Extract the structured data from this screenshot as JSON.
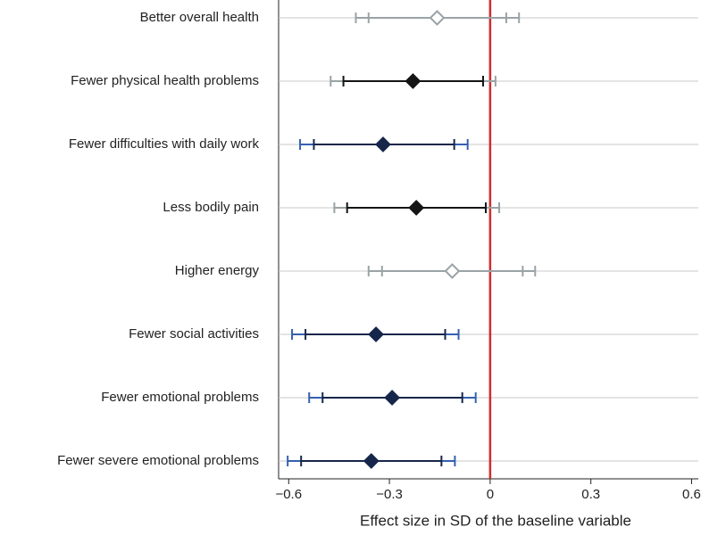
{
  "chart_data": {
    "type": "coefplot",
    "xlabel": "Effect size in SD of the baseline variable",
    "categories": [
      "Better overall health",
      "Fewer physical health problems",
      "Fewer difficulties with daily work",
      "Less bodily pain",
      "Higher energy",
      "Fewer social activities",
      "Fewer emotional problems",
      "Fewer severe emotional problems"
    ],
    "estimates": [
      -0.158,
      -0.23,
      -0.319,
      -0.22,
      -0.113,
      -0.34,
      -0.292,
      -0.354
    ],
    "ci90_low": [
      -0.362,
      -0.437,
      -0.525,
      -0.426,
      -0.322,
      -0.55,
      -0.499,
      -0.563
    ],
    "ci90_high": [
      0.048,
      -0.021,
      -0.107,
      -0.013,
      0.097,
      -0.134,
      -0.083,
      -0.145
    ],
    "ci95_low": [
      -0.4,
      -0.475,
      -0.566,
      -0.464,
      -0.362,
      -0.59,
      -0.539,
      -0.603
    ],
    "ci95_high": [
      0.086,
      0.016,
      -0.067,
      0.027,
      0.134,
      -0.094,
      -0.043,
      -0.105
    ],
    "inner_colors": [
      "#9aa3a6",
      "#151515",
      "#16264a",
      "#151515",
      "#9aa3a6",
      "#16264a",
      "#16264a",
      "#16264a"
    ],
    "outer_colors": [
      "#9aa3a6",
      "#9aa3a6",
      "#3560b0",
      "#9aa3a6",
      "#9aa3a6",
      "#3560b0",
      "#3560b0",
      "#3560b0"
    ],
    "marker_filled": [
      false,
      true,
      true,
      true,
      false,
      true,
      true,
      true
    ],
    "reference_line": 0,
    "reference_color": "#d42a2a",
    "xlim": [
      -0.63,
      0.62
    ],
    "xticks": [
      {
        "value": -0.6,
        "label": "−0.6"
      },
      {
        "value": -0.3,
        "label": "−0.3"
      },
      0,
      0.3,
      0.6
    ],
    "grid": true
  }
}
